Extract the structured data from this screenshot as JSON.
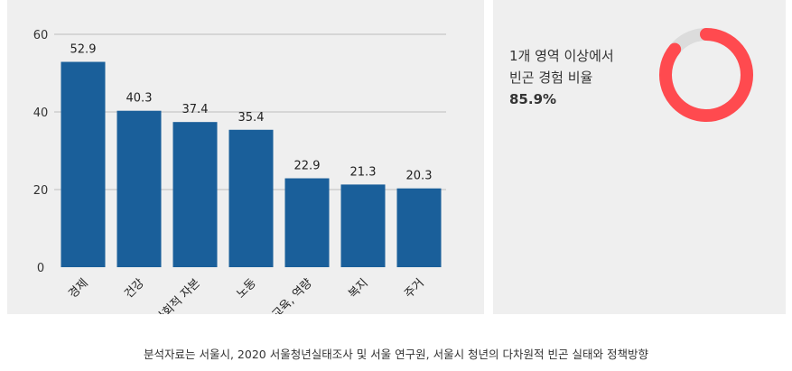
{
  "chart_data": [
    {
      "type": "bar",
      "categories": [
        "경제",
        "건강",
        "사회적 자본",
        "노동",
        "교육, 역량",
        "복지",
        "주거"
      ],
      "values": [
        52.9,
        40.3,
        37.4,
        35.4,
        22.9,
        21.3,
        20.3
      ],
      "ylim": [
        0,
        60
      ],
      "yticks": [
        0,
        20,
        40,
        60
      ],
      "grid": true,
      "color": "#1a5f9a"
    },
    {
      "type": "pie",
      "variant": "donut",
      "label_line1": "1개 영역 이상에서",
      "label_line2": "빈곤 경험 비율",
      "value_label": "85.9%",
      "value": 85.9,
      "color": "#ff4a4f",
      "rest_color": "#dcdcdc"
    }
  ],
  "caption": "분석자료는 서울시, 2020 서울청년실태조사 및 서울 연구원, 서울시 청년의 다차원적 빈곤 실태와 정책방향"
}
